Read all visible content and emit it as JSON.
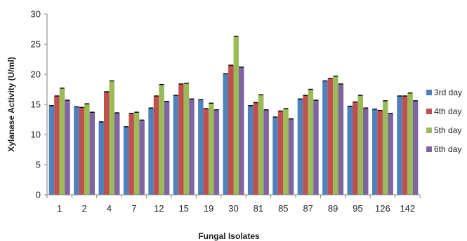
{
  "chart_data": {
    "type": "bar",
    "title": "",
    "xlabel": "Fungal Isolates",
    "ylabel": "Xylanase Activity (U/ml)",
    "ylim": [
      0,
      30
    ],
    "yticks": [
      0,
      5,
      10,
      15,
      20,
      25,
      30
    ],
    "grid": false,
    "legend_position": "right",
    "categories": [
      "1",
      "2",
      "4",
      "7",
      "12",
      "15",
      "19",
      "30",
      "81",
      "85",
      "87",
      "89",
      "95",
      "126",
      "142"
    ],
    "series": [
      {
        "name": "3rd day",
        "color": "#4F81BD",
        "values": [
          14.8,
          14.6,
          12.1,
          11.3,
          14.4,
          16.5,
          15.8,
          20.1,
          14.8,
          12.9,
          15.9,
          18.9,
          14.7,
          14.2,
          16.4
        ]
      },
      {
        "name": "4th day",
        "color": "#C0504D",
        "values": [
          16.4,
          14.5,
          17.1,
          13.5,
          16.4,
          18.4,
          14.3,
          21.5,
          15.3,
          13.9,
          16.5,
          19.3,
          15.4,
          14.0,
          16.4
        ]
      },
      {
        "name": "5th day",
        "color": "#9BBB59",
        "values": [
          17.7,
          15.1,
          18.9,
          13.7,
          18.3,
          18.5,
          15.2,
          26.3,
          16.6,
          14.3,
          17.5,
          19.7,
          16.5,
          15.6,
          16.9
        ]
      },
      {
        "name": "6th day",
        "color": "#8064A2",
        "values": [
          15.7,
          13.7,
          13.6,
          12.4,
          15.5,
          15.9,
          14.1,
          21.2,
          14.1,
          12.6,
          15.7,
          18.4,
          14.4,
          13.5,
          15.6
        ]
      }
    ]
  }
}
